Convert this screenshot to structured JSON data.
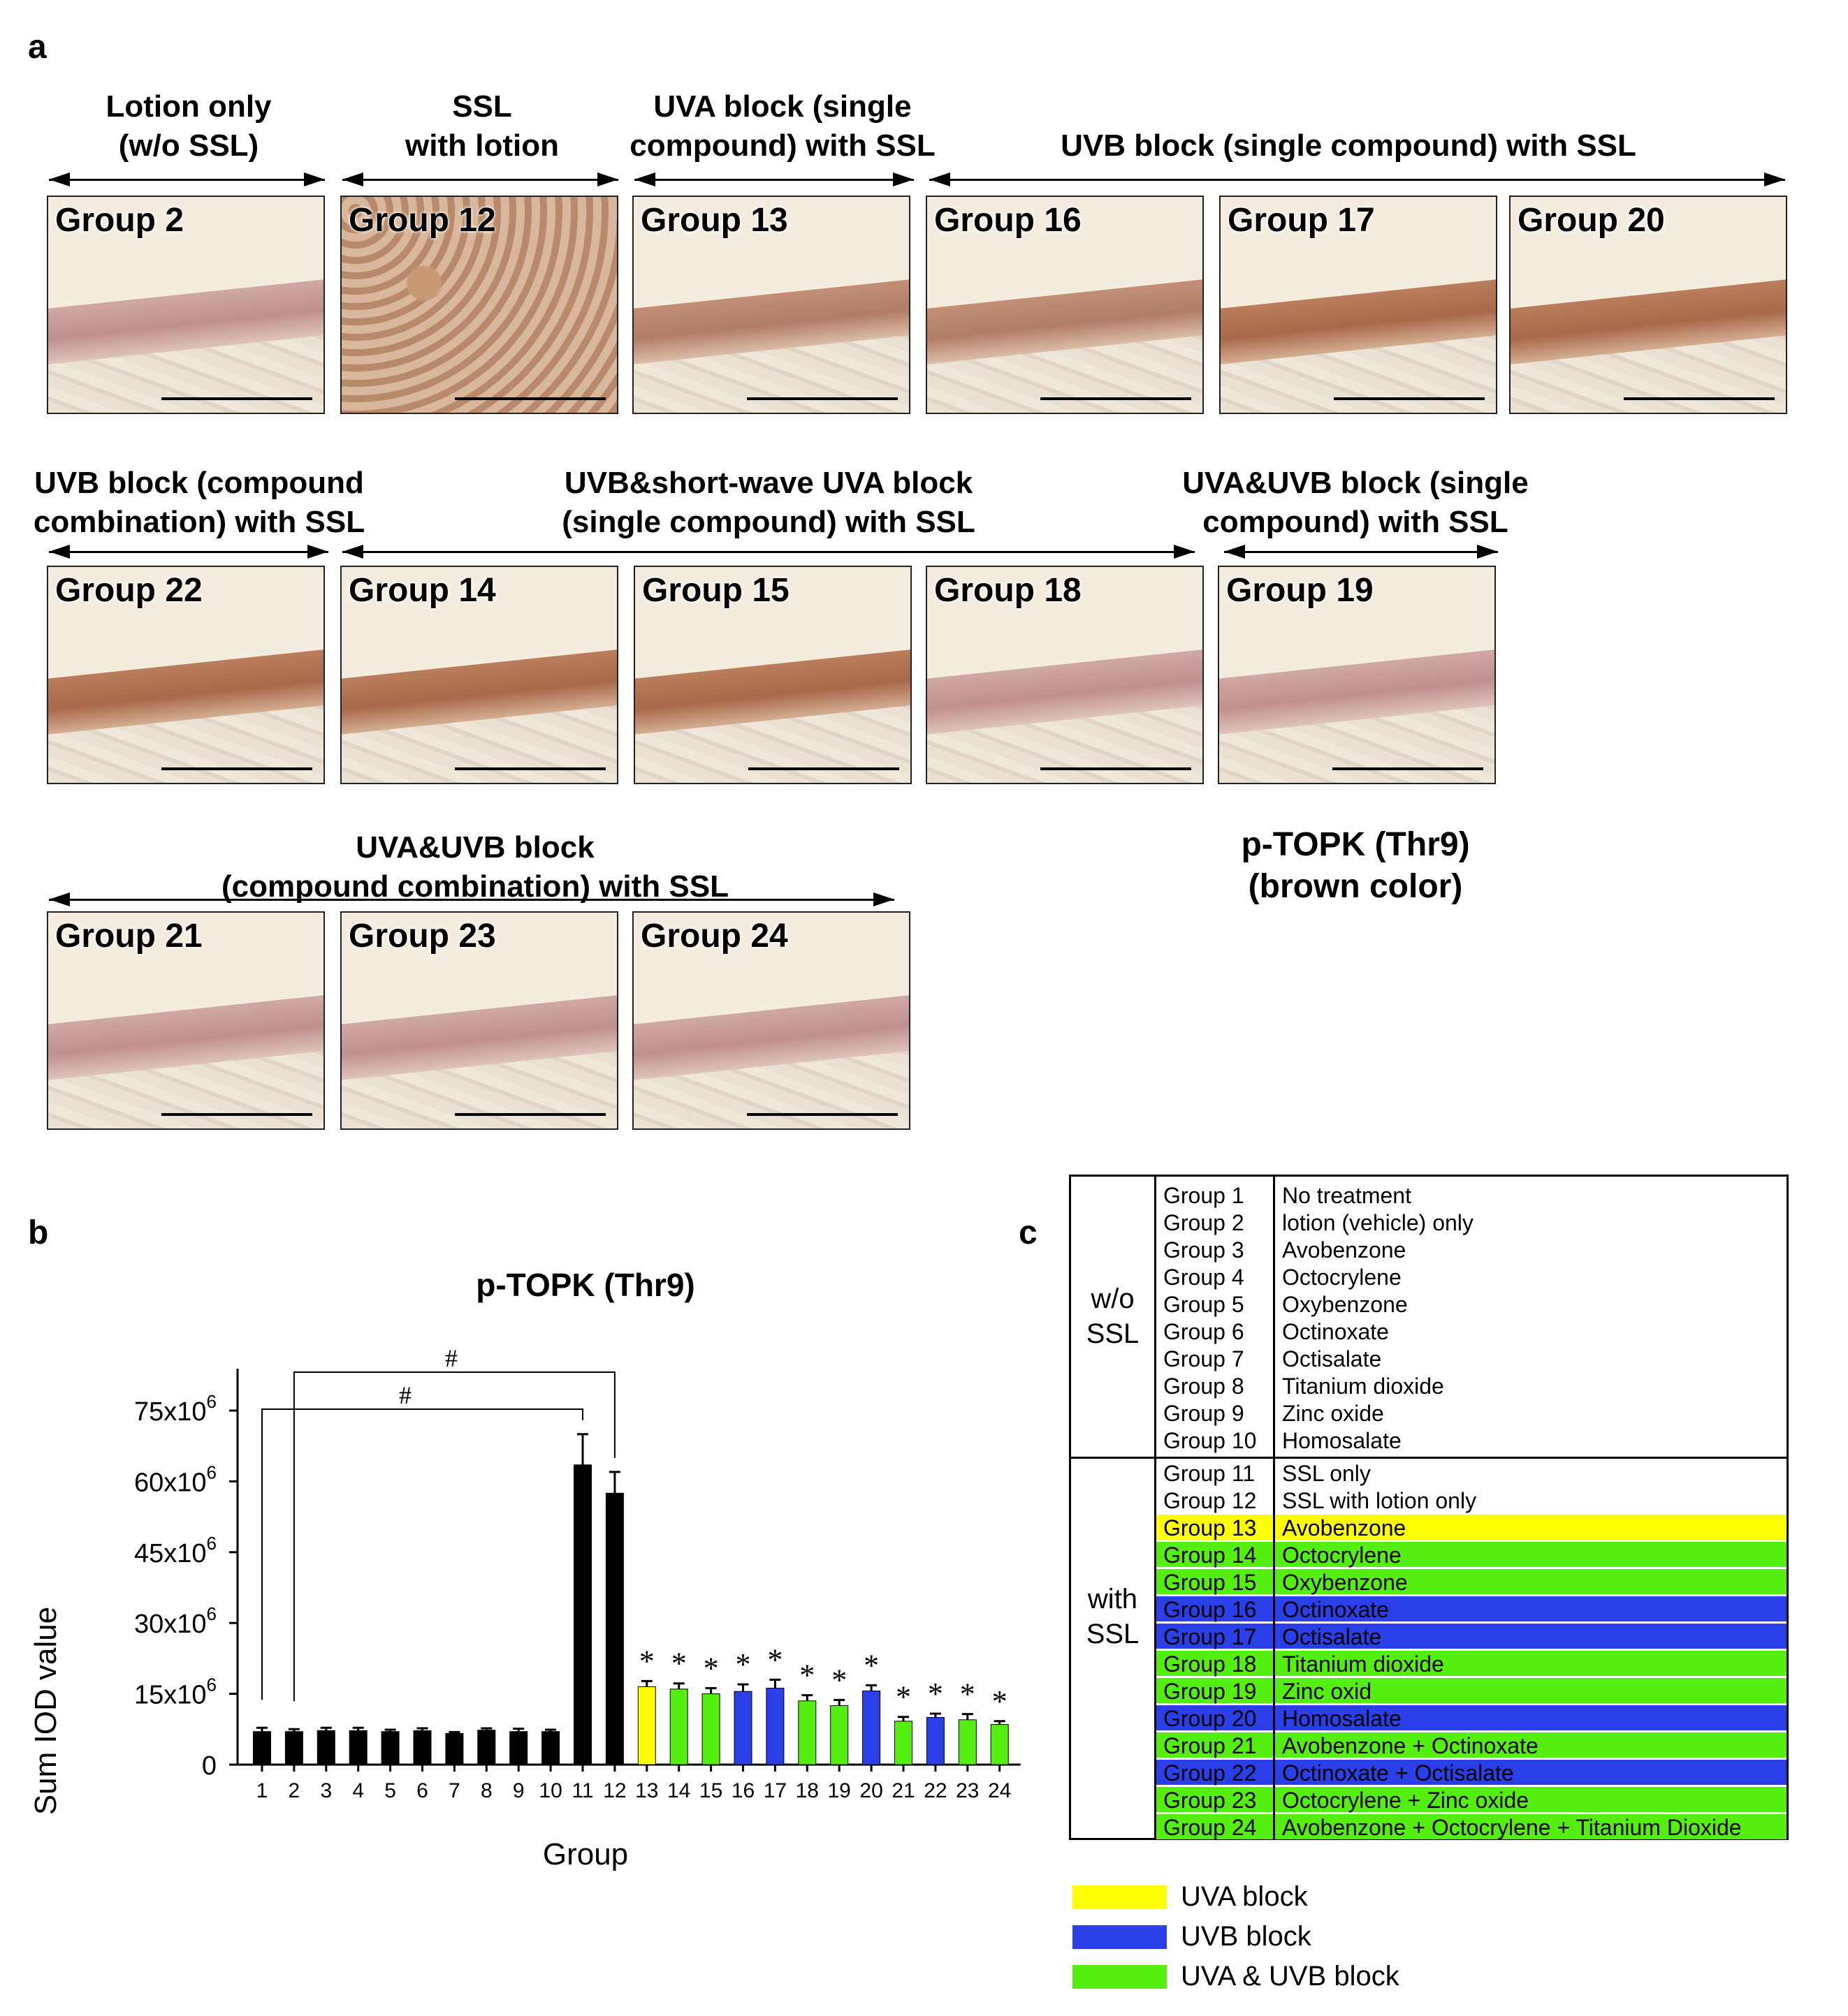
{
  "panel_labels": {
    "a": "a",
    "b": "b",
    "c": "c"
  },
  "section_a": {
    "headers": [
      {
        "id": "h1",
        "text": "Lotion only\n(w/o SSL)"
      },
      {
        "id": "h2",
        "text": "SSL\nwith lotion"
      },
      {
        "id": "h3",
        "text": "UVA block (single\ncompound) with SSL"
      },
      {
        "id": "h4",
        "text": "UVB block (single compound) with SSL"
      },
      {
        "id": "h5",
        "text": "UVB block (compound\ncombination) with SSL"
      },
      {
        "id": "h6",
        "text": "UVB&short-wave UVA block\n(single compound) with SSL"
      },
      {
        "id": "h7",
        "text": "UVA&UVB block (single\ncompound) with SSL"
      },
      {
        "id": "h8",
        "text": "UVA&UVB block\n(compound combination) with SSL"
      }
    ],
    "panels": [
      "Group 2",
      "Group 12",
      "Group 13",
      "Group 16",
      "Group 17",
      "Group 20",
      "Group 22",
      "Group 14",
      "Group 15",
      "Group 18",
      "Group 19",
      "Group 21",
      "Group 23",
      "Group 24"
    ],
    "stain_legend": "p-TOPK (Thr9)\n(brown color)"
  },
  "colors": {
    "black": "#000000",
    "uva": "#ffff00",
    "uvb": "#2b3fe8",
    "uva_uvb": "#55ee11"
  },
  "chart_data": {
    "type": "bar",
    "title": "p-TOPK (Thr9)",
    "xlabel": "Group",
    "ylabel": "Sum IOD value",
    "ylim": [
      0,
      75000000
    ],
    "yticks": [
      "0",
      "15x10",
      "30x10",
      "45x10",
      "60x10",
      "75x10"
    ],
    "ytick_exp": "6",
    "categories": [
      "1",
      "2",
      "3",
      "4",
      "5",
      "6",
      "7",
      "8",
      "9",
      "10",
      "11",
      "12",
      "13",
      "14",
      "15",
      "16",
      "17",
      "18",
      "19",
      "20",
      "21",
      "22",
      "23",
      "24"
    ],
    "values": [
      7.0,
      7.0,
      7.2,
      7.2,
      7.0,
      7.2,
      6.6,
      7.3,
      7.0,
      7.0,
      63.5,
      57.5,
      16.5,
      16.0,
      15.0,
      15.5,
      16.2,
      13.5,
      12.5,
      15.6,
      9.2,
      10.0,
      9.5,
      8.5
    ],
    "value_scale": 1000000,
    "errors": [
      0.8,
      0.5,
      0.6,
      0.6,
      0.4,
      0.5,
      0.3,
      0.4,
      0.6,
      0.4,
      6.5,
      4.5,
      1.2,
      1.2,
      1.2,
      1.5,
      1.8,
      1.2,
      1.2,
      1.2,
      0.9,
      0.8,
      1.2,
      0.7
    ],
    "colors": [
      "black",
      "black",
      "black",
      "black",
      "black",
      "black",
      "black",
      "black",
      "black",
      "black",
      "black",
      "black",
      "uva",
      "uva_uvb",
      "uva_uvb",
      "uvb",
      "uvb",
      "uva_uvb",
      "uva_uvb",
      "uvb",
      "uva_uvb",
      "uvb",
      "uva_uvb",
      "uva_uvb"
    ],
    "stars": [
      false,
      false,
      false,
      false,
      false,
      false,
      false,
      false,
      false,
      false,
      false,
      false,
      true,
      true,
      true,
      true,
      true,
      true,
      true,
      true,
      true,
      true,
      true,
      true
    ],
    "star_symbol": "*",
    "hash_symbol": "#",
    "brackets": [
      {
        "from": "1",
        "to": "11"
      },
      {
        "from": "2",
        "to": "12"
      }
    ]
  },
  "table": {
    "wo_label": "w/o\nSSL",
    "with_label": "with\nSSL",
    "rows": [
      {
        "g": "Group 1",
        "t": "No treatment",
        "c": ""
      },
      {
        "g": "Group 2",
        "t": "lotion (vehicle) only",
        "c": ""
      },
      {
        "g": "Group 3",
        "t": "Avobenzone",
        "c": ""
      },
      {
        "g": "Group 4",
        "t": "Octocrylene",
        "c": ""
      },
      {
        "g": "Group 5",
        "t": "Oxybenzone",
        "c": ""
      },
      {
        "g": "Group 6",
        "t": "Octinoxate",
        "c": ""
      },
      {
        "g": "Group 7",
        "t": "Octisalate",
        "c": ""
      },
      {
        "g": "Group 8",
        "t": "Titanium dioxide",
        "c": ""
      },
      {
        "g": "Group 9",
        "t": "Zinc oxide",
        "c": ""
      },
      {
        "g": "Group 10",
        "t": "Homosalate",
        "c": ""
      },
      {
        "g": "Group 11",
        "t": "SSL only",
        "c": ""
      },
      {
        "g": "Group 12",
        "t": "SSL with lotion only",
        "c": ""
      },
      {
        "g": "Group 13",
        "t": "Avobenzone",
        "c": "uva"
      },
      {
        "g": "Group 14",
        "t": "Octocrylene",
        "c": "uva_uvb"
      },
      {
        "g": "Group 15",
        "t": "Oxybenzone",
        "c": "uva_uvb"
      },
      {
        "g": "Group 16",
        "t": "Octinoxate",
        "c": "uvb"
      },
      {
        "g": "Group 17",
        "t": "Octisalate",
        "c": "uvb"
      },
      {
        "g": "Group 18",
        "t": "Titanium dioxide",
        "c": "uva_uvb"
      },
      {
        "g": "Group 19",
        "t": "Zinc oxid",
        "c": "uva_uvb"
      },
      {
        "g": "Group 20",
        "t": "Homosalate",
        "c": "uvb"
      },
      {
        "g": "Group 21",
        "t": "Avobenzone + Octinoxate",
        "c": "uva_uvb"
      },
      {
        "g": "Group 22",
        "t": "Octinoxate + Octisalate",
        "c": "uvb"
      },
      {
        "g": "Group 23",
        "t": "Octocrylene + Zinc oxide",
        "c": "uva_uvb"
      },
      {
        "g": "Group 24",
        "t": "Avobenzone + Octocrylene + Titanium Dioxide",
        "c": "uva_uvb"
      }
    ]
  },
  "legend": [
    {
      "label": "UVA block",
      "c": "uva"
    },
    {
      "label": "UVB block",
      "c": "uvb"
    },
    {
      "label": "UVA & UVB block",
      "c": "uva_uvb"
    }
  ]
}
